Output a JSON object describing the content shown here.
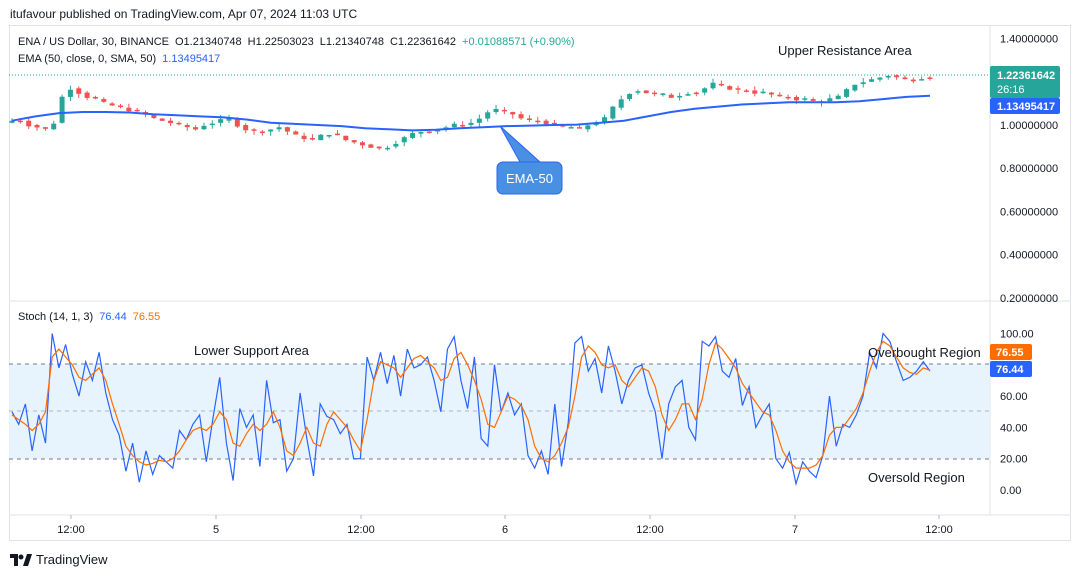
{
  "header": {
    "published_by": "itufavour published on TradingView.com, Apr 07, 2024 11:03 UTC"
  },
  "symbol_line": {
    "name": "ENA / US Dollar, 30, BINANCE",
    "open": "O1.21340748",
    "high": "H1.22503023",
    "low": "L1.21340748",
    "close": "C1.22361642",
    "change": "+0.01088571 (+0.90%)"
  },
  "ema_legend": {
    "label": "EMA (50, close, 0, SMA, 50)",
    "value": "1.13495417"
  },
  "stoch_legend": {
    "label": "Stoch (14, 1, 3)",
    "k_value": "76.44",
    "d_value": "76.55"
  },
  "annotations": {
    "upper_resistance": "Upper Resistance Area",
    "ema_callout": "EMA-50",
    "lower_support": "Lower Support Area",
    "overbought": "Overbought Region",
    "oversold": "Oversold Region"
  },
  "price_axis": {
    "ticks": [
      "1.40000000",
      "1.20000000",
      "1.00000000",
      "0.80000000",
      "0.60000000",
      "0.40000000",
      "0.20000000"
    ],
    "tick_values": [
      1.4,
      1.2,
      1.0,
      0.8,
      0.6,
      0.4,
      0.2
    ],
    "last_price_label": "1.22361642",
    "countdown": "26:16",
    "ema_label": "1.13495417"
  },
  "stoch_axis": {
    "ticks": [
      "100.00",
      "80.00",
      "60.00",
      "40.00",
      "20.00",
      "0.00"
    ],
    "tick_values": [
      100,
      80,
      60,
      40,
      20,
      0
    ],
    "d_label": "76.55",
    "k_label": "76.44"
  },
  "time_axis": {
    "ticks": [
      "12:00",
      "5",
      "12:00",
      "6",
      "12:00",
      "7",
      "12:00"
    ]
  },
  "colors": {
    "bull": "#26a69a",
    "bear": "#ef5350",
    "ema": "#2962ff",
    "k_line": "#2962ff",
    "d_line": "#ff6d00",
    "band": "#e3f2fd",
    "callout": "#4a90e2"
  },
  "footer": {
    "brand": "TradingView"
  },
  "chart_data": [
    {
      "type": "candlestick",
      "title": "ENA / US Dollar, 30, BINANCE",
      "x_ticks": [
        "12:00",
        "5",
        "12:00",
        "6",
        "12:00",
        "7",
        "12:00"
      ],
      "ylim": [
        0.2,
        1.4
      ],
      "close_path": [
        1.02,
        1.02,
        1.0,
        0.99,
        0.98,
        1.01,
        1.13,
        1.17,
        1.15,
        1.13,
        1.12,
        1.1,
        1.09,
        1.08,
        1.07,
        1.06,
        1.05,
        1.03,
        1.02,
        1.01,
        1.0,
        0.99,
        0.98,
        1.0,
        1.01,
        1.02,
        1.03,
        1.0,
        0.98,
        0.97,
        0.97,
        0.98,
        0.99,
        0.97,
        0.95,
        0.94,
        0.93,
        0.95,
        0.96,
        0.95,
        0.93,
        0.92,
        0.91,
        0.9,
        0.89,
        0.9,
        0.92,
        0.94,
        0.96,
        0.97,
        0.97,
        0.98,
        0.99,
        1.0,
        1.0,
        1.01,
        1.03,
        1.06,
        1.07,
        1.06,
        1.05,
        1.03,
        1.02,
        1.02,
        1.01,
        1.0,
        0.99,
        0.99,
        0.98,
        1.0,
        1.01,
        1.03,
        1.08,
        1.12,
        1.15,
        1.16,
        1.15,
        1.14,
        1.14,
        1.13,
        1.14,
        1.15,
        1.15,
        1.17,
        1.19,
        1.18,
        1.17,
        1.16,
        1.16,
        1.15,
        1.15,
        1.14,
        1.13,
        1.13,
        1.12,
        1.12,
        1.11,
        1.11,
        1.12,
        1.13,
        1.16,
        1.19,
        1.2,
        1.21,
        1.22,
        1.23,
        1.22,
        1.21,
        1.21,
        1.22,
        1.22
      ],
      "series": [
        {
          "name": "EMA (50, close, 0, SMA, 50)",
          "values": [
            1.02,
            1.04,
            1.055,
            1.06,
            1.06,
            1.058,
            1.05,
            1.045,
            1.04,
            1.035,
            1.025,
            1.01,
            1.005,
            1.0,
            0.995,
            0.985,
            0.98,
            0.975,
            0.978,
            0.985,
            0.99,
            0.995,
            0.997,
            1.0,
            1.002,
            1.01,
            1.02,
            1.04,
            1.06,
            1.075,
            1.085,
            1.095,
            1.1,
            1.105,
            1.105,
            1.105,
            1.11,
            1.12,
            1.13,
            1.135
          ]
        }
      ],
      "last_close": 1.22361642,
      "ema_last": 1.13495417
    },
    {
      "type": "line",
      "title": "Stoch (14, 1, 3)",
      "x_ticks": [
        "12:00",
        "5",
        "12:00",
        "6",
        "12:00",
        "7",
        "12:00"
      ],
      "ylim": [
        0,
        100
      ],
      "bands": [
        20,
        50,
        80
      ],
      "series": [
        {
          "name": "%K",
          "color": "#2962ff",
          "values": [
            50,
            42,
            55,
            25,
            48,
            30,
            100,
            78,
            93,
            74,
            60,
            82,
            70,
            88,
            62,
            45,
            35,
            12,
            30,
            5,
            25,
            10,
            22,
            18,
            14,
            38,
            32,
            42,
            48,
            18,
            46,
            72,
            30,
            6,
            52,
            40,
            48,
            15,
            70,
            43,
            45,
            12,
            20,
            62,
            33,
            9,
            55,
            47,
            45,
            36,
            42,
            20,
            20,
            85,
            70,
            88,
            68,
            86,
            60,
            90,
            78,
            80,
            85,
            70,
            50,
            90,
            98,
            70,
            52,
            85,
            33,
            28,
            80,
            50,
            62,
            48,
            55,
            22,
            14,
            25,
            10,
            55,
            15,
            43,
            94,
            98,
            76,
            84,
            62,
            92,
            76,
            55,
            70,
            78,
            80,
            62,
            50,
            20,
            55,
            66,
            70,
            40,
            32,
            95,
            92,
            98,
            76,
            72,
            84,
            54,
            66,
            40,
            48,
            55,
            20,
            14,
            24,
            4,
            18,
            12,
            8,
            22,
            60,
            28,
            42,
            40,
            48,
            60,
            88,
            78,
            100,
            95,
            82,
            70,
            72,
            76,
            82,
            76
          ]
        },
        {
          "name": "%D",
          "color": "#ff6d00",
          "values": [
            48,
            45,
            42,
            38,
            42,
            50,
            85,
            90,
            85,
            80,
            72,
            70,
            74,
            78,
            70,
            55,
            42,
            28,
            22,
            18,
            16,
            17,
            19,
            18,
            20,
            25,
            32,
            38,
            40,
            38,
            42,
            50,
            45,
            30,
            28,
            36,
            42,
            38,
            42,
            50,
            40,
            25,
            22,
            30,
            40,
            30,
            28,
            42,
            50,
            45,
            40,
            32,
            25,
            45,
            70,
            82,
            80,
            78,
            72,
            78,
            84,
            86,
            82,
            78,
            70,
            72,
            84,
            88,
            80,
            70,
            58,
            42,
            40,
            50,
            60,
            58,
            54,
            45,
            28,
            20,
            18,
            22,
            30,
            40,
            60,
            85,
            92,
            88,
            80,
            78,
            80,
            70,
            66,
            72,
            78,
            76,
            66,
            48,
            38,
            45,
            55,
            55,
            45,
            58,
            80,
            94,
            90,
            84,
            78,
            68,
            62,
            56,
            50,
            48,
            38,
            25,
            18,
            14,
            14,
            14,
            16,
            22,
            35,
            40,
            40,
            46,
            52,
            62,
            76,
            88,
            95,
            92,
            85,
            78,
            75,
            74,
            78,
            76.55
          ]
        }
      ],
      "k_last": 76.44,
      "d_last": 76.55
    }
  ]
}
